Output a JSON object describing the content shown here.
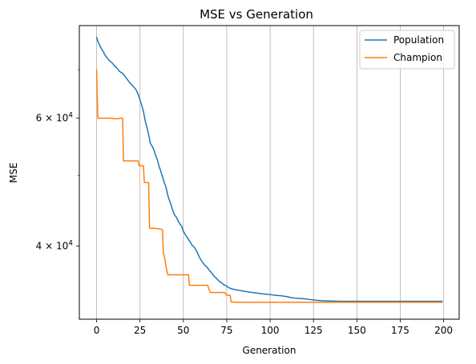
{
  "chart_data": {
    "type": "line",
    "title": "MSE vs Generation",
    "xlabel": "Generation",
    "ylabel": "MSE",
    "xlim": [
      -9.95,
      208.95
    ],
    "ylim": [
      31700,
      80500
    ],
    "yscale": "log",
    "grid": {
      "x": true,
      "y": false
    },
    "legend_position": "top-right",
    "x_ticks": [
      0,
      25,
      50,
      75,
      100,
      125,
      150,
      175,
      200
    ],
    "x_tick_labels": [
      "0",
      "25",
      "50",
      "75",
      "100",
      "125",
      "150",
      "175",
      "200"
    ],
    "y_major_ticks": [
      {
        "value": 40000,
        "mantissa": "4",
        "base": "10",
        "exp": "4"
      },
      {
        "value": 60000,
        "mantissa": "6",
        "base": "10",
        "exp": "4"
      }
    ],
    "y_minor_ticks": [
      50000,
      70000
    ],
    "series": [
      {
        "name": "Population",
        "color": "#1f77b4",
        "points": [
          [
            0,
            77500
          ],
          [
            1,
            76300
          ],
          [
            2,
            75400
          ],
          [
            3,
            74700
          ],
          [
            4,
            74000
          ],
          [
            5,
            73200
          ],
          [
            6,
            72700
          ],
          [
            7,
            72200
          ],
          [
            8,
            71800
          ],
          [
            9,
            71500
          ],
          [
            10,
            71000
          ],
          [
            11,
            70600
          ],
          [
            12,
            70200
          ],
          [
            13,
            69700
          ],
          [
            14,
            69400
          ],
          [
            15,
            69200
          ],
          [
            16,
            68700
          ],
          [
            17,
            68200
          ],
          [
            18,
            67700
          ],
          [
            19,
            67200
          ],
          [
            20,
            66800
          ],
          [
            21,
            66400
          ],
          [
            22,
            66000
          ],
          [
            23,
            65500
          ],
          [
            24,
            64700
          ],
          [
            25,
            63600
          ],
          [
            26,
            62500
          ],
          [
            27,
            61300
          ],
          [
            28,
            59500
          ],
          [
            29,
            58300
          ],
          [
            30,
            56900
          ],
          [
            31,
            55400
          ],
          [
            32,
            54900
          ],
          [
            33,
            54300
          ],
          [
            34,
            53300
          ],
          [
            35,
            52600
          ],
          [
            36,
            51500
          ],
          [
            37,
            50700
          ],
          [
            38,
            49800
          ],
          [
            39,
            48900
          ],
          [
            40,
            48200
          ],
          [
            41,
            47000
          ],
          [
            42,
            46200
          ],
          [
            43,
            45500
          ],
          [
            44,
            44700
          ],
          [
            45,
            44100
          ],
          [
            46,
            43800
          ],
          [
            47,
            43300
          ],
          [
            48,
            42900
          ],
          [
            49,
            42600
          ],
          [
            50,
            41900
          ],
          [
            51,
            41500
          ],
          [
            52,
            41200
          ],
          [
            53,
            40800
          ],
          [
            54,
            40500
          ],
          [
            55,
            40100
          ],
          [
            56,
            39900
          ],
          [
            57,
            39600
          ],
          [
            58,
            39200
          ],
          [
            59,
            38700
          ],
          [
            60,
            38300
          ],
          [
            61,
            38000
          ],
          [
            62,
            37700
          ],
          [
            63,
            37500
          ],
          [
            64,
            37300
          ],
          [
            65,
            37000
          ],
          [
            66,
            36800
          ],
          [
            67,
            36500
          ],
          [
            68,
            36300
          ],
          [
            69,
            36100
          ],
          [
            70,
            35900
          ],
          [
            71,
            35700
          ],
          [
            72,
            35600
          ],
          [
            73,
            35400
          ],
          [
            74,
            35300
          ],
          [
            75,
            35200
          ],
          [
            76,
            35050
          ],
          [
            78,
            34900
          ],
          [
            80,
            34800
          ],
          [
            82,
            34750
          ],
          [
            85,
            34650
          ],
          [
            88,
            34550
          ],
          [
            90,
            34500
          ],
          [
            93,
            34430
          ],
          [
            96,
            34350
          ],
          [
            100,
            34280
          ],
          [
            103,
            34200
          ],
          [
            106,
            34150
          ],
          [
            109,
            34080
          ],
          [
            112,
            33950
          ],
          [
            115,
            33880
          ],
          [
            120,
            33820
          ],
          [
            123,
            33740
          ],
          [
            126,
            33670
          ],
          [
            130,
            33620
          ],
          [
            135,
            33580
          ],
          [
            140,
            33550
          ],
          [
            150,
            33550
          ],
          [
            175,
            33550
          ],
          [
            199,
            33550
          ]
        ]
      },
      {
        "name": "Champion",
        "color": "#ff7f0e",
        "points": [
          [
            0,
            70000
          ],
          [
            0.7,
            60000
          ],
          [
            3,
            60000
          ],
          [
            9,
            60000
          ],
          [
            9.5,
            59900
          ],
          [
            13,
            59900
          ],
          [
            13.5,
            60000
          ],
          [
            15,
            60000
          ],
          [
            15.5,
            52400
          ],
          [
            24,
            52400
          ],
          [
            24.5,
            51600
          ],
          [
            26,
            51600
          ],
          [
            27,
            51600
          ],
          [
            27.5,
            48900
          ],
          [
            29,
            48900
          ],
          [
            30,
            48900
          ],
          [
            30.5,
            42300
          ],
          [
            34,
            42300
          ],
          [
            37,
            42200
          ],
          [
            38,
            42100
          ],
          [
            38.5,
            39000
          ],
          [
            39,
            38800
          ],
          [
            40,
            37500
          ],
          [
            41,
            36500
          ],
          [
            46,
            36500
          ],
          [
            52,
            36500
          ],
          [
            53,
            36500
          ],
          [
            53.5,
            35300
          ],
          [
            58,
            35300
          ],
          [
            64,
            35300
          ],
          [
            65.5,
            34500
          ],
          [
            73,
            34500
          ],
          [
            74,
            34500
          ],
          [
            75,
            34200
          ],
          [
            77,
            34200
          ],
          [
            77.5,
            33500
          ],
          [
            78,
            33500
          ],
          [
            80,
            33450
          ],
          [
            199,
            33450
          ]
        ]
      }
    ]
  }
}
